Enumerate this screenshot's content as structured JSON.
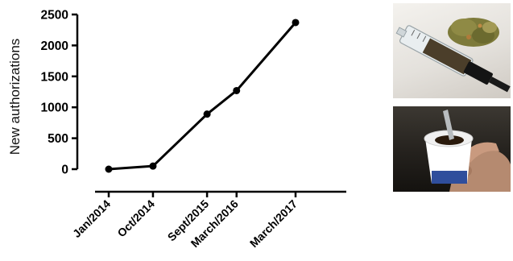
{
  "chart_data": {
    "type": "line",
    "categories": [
      "Jan/2014",
      "Oct/2014",
      "Sept/2015",
      "March/2016",
      "March/2017"
    ],
    "x_positions": [
      0,
      9,
      20,
      26,
      38
    ],
    "values": [
      0,
      50,
      890,
      1270,
      2370
    ],
    "ylabel": "New authorizations",
    "xlabel": "",
    "ylim": [
      0,
      2500
    ],
    "yticks": [
      0,
      500,
      1000,
      1500,
      2000,
      2500
    ],
    "grid": false,
    "line_color": "#000000"
  },
  "images": {
    "top": "syringe-and-cannabis-bud-photo",
    "bottom": "hand-holding-yogurt-cup-with-spoon-photo"
  }
}
